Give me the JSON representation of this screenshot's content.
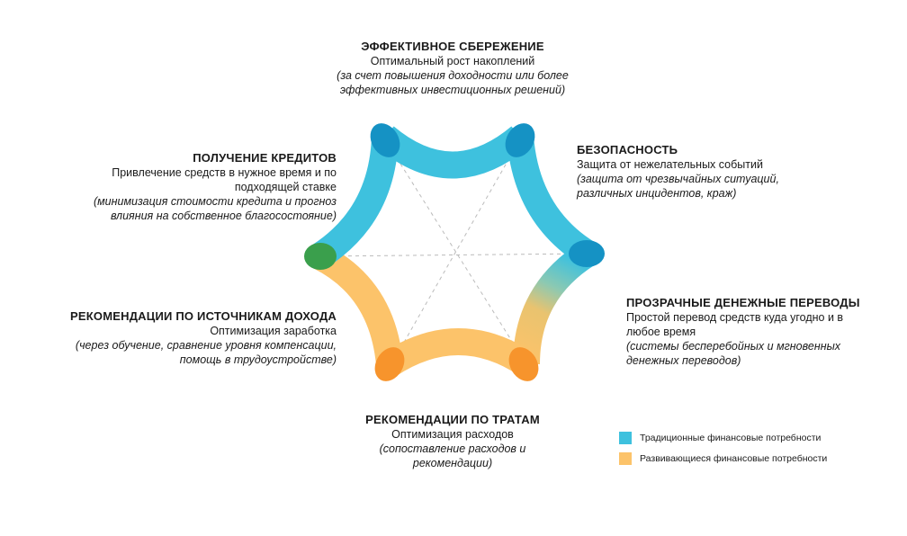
{
  "colors": {
    "traditional": "#3EC1DE",
    "traditional_dark": "#1592C4",
    "developing": "#FCC36A",
    "developing_dark": "#F7942C",
    "junction_green": "#3A9F4C",
    "dashes": "#BBBBBB"
  },
  "nodes": {
    "savings": {
      "title": "ЭФФЕКТИВНОЕ  СБЕРЕЖЕНИЕ",
      "line1": "Оптимальный  рост накоплений",
      "sub1": "(за счет повышения доходности или более",
      "sub2": "эффективных инвестиционных  решений)"
    },
    "security": {
      "title": "БЕЗОПАСНОСТЬ",
      "line1": "Защита от нежелательных  событий",
      "sub1": "(защита от чрезвычайных ситуаций,",
      "sub2": "различных инцидентов,  краж)"
    },
    "transfers": {
      "title": "ПРОЗРАЧНЫЕ ДЕНЕЖНЫЕ  ПЕРЕВОДЫ",
      "line1": "Простой перевод средств куда угодно и в",
      "line2": "любое время",
      "sub1": "(системы бесперебойных  и мгновенных",
      "sub2": "денежных  переводов)"
    },
    "spending": {
      "title": "РЕКОМЕНДАЦИИ  ПО ТРАТАМ",
      "line1": "Оптимизация  расходов",
      "sub1": "(сопоставление  расходов и",
      "sub2": "рекомендации)"
    },
    "income": {
      "title": "РЕКОМЕНДАЦИИ  ПО ИСТОЧНИКАМ ДОХОДА",
      "line1": "Оптимизация  заработка",
      "sub1": "(через обучение,  сравнение уровня компенсации,",
      "sub2": "помощь в трудоустройстве)"
    },
    "credit": {
      "title": "ПОЛУЧЕНИЕ  КРЕДИТОВ",
      "line1": "Привлечение  средств в нужное время и по",
      "line2": "подходящей ставке",
      "sub1": "(минимизация  стоимости кредита и прогноз",
      "sub2": "влияния на собственное благосостояние)"
    }
  },
  "legend": {
    "traditional": "Традиционные финансовые потребности",
    "developing": "Развивающиеся финансовые потребности"
  }
}
